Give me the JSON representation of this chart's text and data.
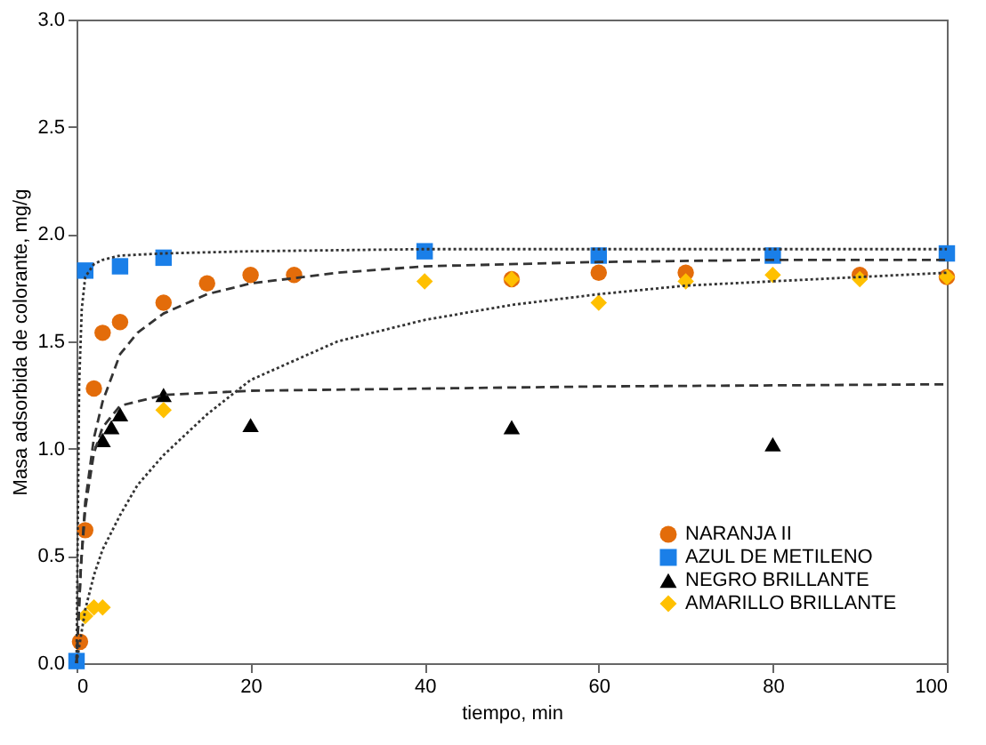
{
  "chart_data": {
    "type": "scatter",
    "xlabel": "tiempo, min",
    "ylabel": "Masa adsorbida de colorante, mg/g",
    "xlim": [
      0,
      100
    ],
    "ylim": [
      0,
      3
    ],
    "xticks": [
      0,
      20,
      40,
      60,
      80,
      100
    ],
    "yticks": [
      {
        "value": 0,
        "label": "0.0"
      },
      0.5,
      {
        "value": 1,
        "label": "1.0"
      },
      1.5,
      {
        "value": 2,
        "label": "2.0"
      },
      2.5,
      {
        "value": 3,
        "label": "3.0"
      }
    ],
    "grid": false,
    "legend": "bottom right",
    "series": [
      {
        "name": "NARANJA II",
        "color": "#e36c0a",
        "marker": "circle",
        "x": [
          0.4,
          1,
          2,
          3,
          5,
          10,
          15,
          20,
          25,
          50,
          60,
          70,
          90,
          100
        ],
        "values": [
          0.1,
          0.62,
          1.28,
          1.54,
          1.59,
          1.68,
          1.77,
          1.81,
          1.81,
          1.79,
          1.82,
          1.82,
          1.81,
          1.8
        ]
      },
      {
        "name": "AZUL DE METILENO",
        "color": "#1a7fe8",
        "marker": "square",
        "x": [
          0,
          1,
          5,
          10,
          40,
          60,
          80,
          100
        ],
        "values": [
          0.01,
          1.83,
          1.85,
          1.89,
          1.92,
          1.9,
          1.9,
          1.91
        ]
      },
      {
        "name": "NEGRO BRILLANTE",
        "color": "#000000",
        "marker": "triangle",
        "x": [
          3,
          4,
          5,
          10,
          20,
          50,
          80
        ],
        "values": [
          1.04,
          1.1,
          1.16,
          1.25,
          1.11,
          1.1,
          1.02
        ]
      },
      {
        "name": "AMARILLO BRILLANTE",
        "color": "#ffc000",
        "marker": "diamond",
        "x": [
          1,
          2,
          3,
          10,
          40,
          50,
          60,
          70,
          80,
          90,
          100
        ],
        "values": [
          0.22,
          0.26,
          0.26,
          1.18,
          1.78,
          1.79,
          1.68,
          1.78,
          1.81,
          1.79,
          1.8
        ]
      },
      {
        "type": "line",
        "color": "#333333",
        "line_style": "dotted",
        "x": [
          0,
          0.3,
          0.6,
          1,
          2,
          3,
          5,
          10,
          20,
          40,
          60,
          100
        ],
        "values": [
          0,
          1.3,
          1.65,
          1.8,
          1.86,
          1.88,
          1.9,
          1.91,
          1.92,
          1.93,
          1.93,
          1.93
        ]
      },
      {
        "type": "line",
        "color": "#333333",
        "line_style": "dashed",
        "x": [
          0,
          0.5,
          1,
          2,
          3,
          5,
          7,
          10,
          15,
          20,
          30,
          40,
          60,
          80,
          100
        ],
        "values": [
          0,
          0.45,
          0.75,
          1.05,
          1.22,
          1.44,
          1.54,
          1.63,
          1.72,
          1.77,
          1.82,
          1.85,
          1.87,
          1.88,
          1.88
        ]
      },
      {
        "type": "line",
        "color": "#333333",
        "line_style": "dotted",
        "x": [
          0,
          1,
          2,
          3,
          5,
          7,
          10,
          15,
          20,
          30,
          40,
          50,
          60,
          70,
          80,
          90,
          100
        ],
        "values": [
          0,
          0.25,
          0.41,
          0.53,
          0.69,
          0.83,
          0.97,
          1.16,
          1.32,
          1.5,
          1.6,
          1.67,
          1.72,
          1.76,
          1.78,
          1.8,
          1.82
        ]
      },
      {
        "type": "line",
        "color": "#333333",
        "line_style": "dashed",
        "x": [
          0,
          0.5,
          1,
          2,
          3,
          5,
          10,
          20,
          40,
          60,
          100
        ],
        "values": [
          0,
          0.45,
          0.72,
          0.98,
          1.1,
          1.2,
          1.25,
          1.27,
          1.28,
          1.29,
          1.3
        ]
      }
    ]
  }
}
